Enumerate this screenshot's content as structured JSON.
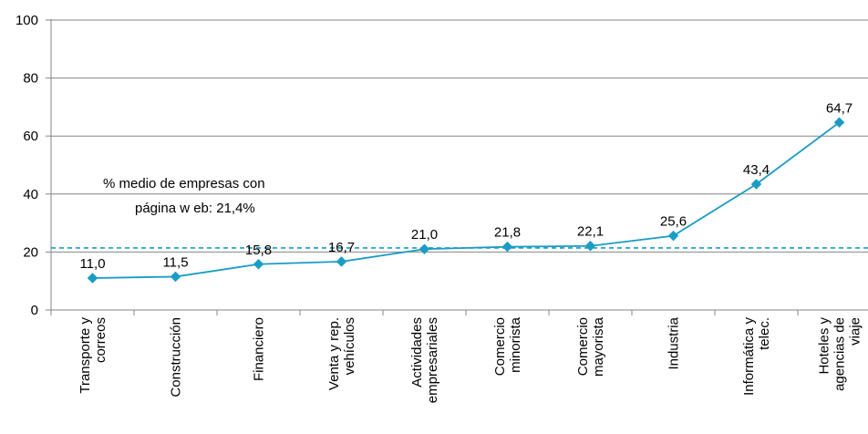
{
  "chart_data": {
    "type": "line",
    "categories": [
      [
        "Transporte y",
        "correos"
      ],
      [
        "Construcción"
      ],
      [
        "Financiero"
      ],
      [
        "Venta y rep.",
        "vehículos"
      ],
      [
        "Actividades",
        "empresariales"
      ],
      [
        "Comercio",
        "minorista"
      ],
      [
        "Comercio",
        "mayorista"
      ],
      [
        "Industria"
      ],
      [
        "Informática y",
        "telec."
      ],
      [
        "Hoteles y",
        "agencias de",
        "viaje"
      ]
    ],
    "series": [
      {
        "values": [
          11.0,
          11.5,
          15.8,
          16.7,
          21.0,
          21.8,
          22.1,
          25.6,
          43.4,
          64.7
        ],
        "data_labels": [
          "11,0",
          "11,5",
          "15,8",
          "16,7",
          "21,0",
          "21,8",
          "22,1",
          "25,6",
          "43,4",
          "64,7"
        ]
      }
    ],
    "reference_line": {
      "value": 21.4,
      "style": "dashed",
      "label_lines": [
        "% medio de empresas con",
        "página w eb: 21,4%"
      ]
    },
    "yticks": [
      "0",
      "20",
      "40",
      "60",
      "80",
      "100"
    ],
    "ylim": [
      0,
      100
    ],
    "grid": true,
    "colors": {
      "series": "#1a9cc4",
      "marker": "#1a9cc4",
      "reference": "#1a9cc4",
      "grid": "#868686",
      "axis": "#868686"
    }
  }
}
